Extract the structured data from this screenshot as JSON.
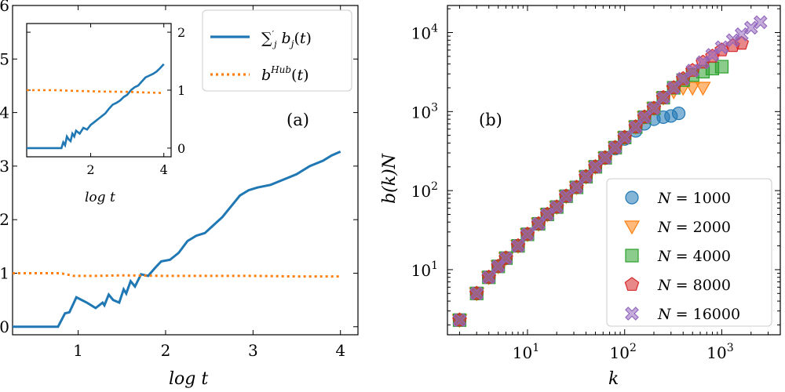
{
  "chart_data": [
    {
      "id": "a",
      "type": "line",
      "panel_label": "(a)",
      "xlabel": "log t",
      "ylabel": "",
      "xlim": [
        0.25,
        4.2
      ],
      "ylim": [
        -0.15,
        6.0
      ],
      "xticks": [
        1,
        2,
        3,
        4
      ],
      "yticks": [
        0,
        1,
        2,
        3,
        4,
        5,
        6
      ],
      "legend": {
        "placement": "top-right",
        "entries": [
          "Σ'_j b_j(t)",
          "b^Hub(t)"
        ]
      },
      "series": [
        {
          "name": "Σ'_j b_j(t)",
          "color": "#1f77b4",
          "style": "solid",
          "x": [
            0.25,
            0.77,
            0.85,
            0.9,
            0.98,
            1.04,
            1.1,
            1.2,
            1.28,
            1.3,
            1.35,
            1.4,
            1.47,
            1.52,
            1.55,
            1.6,
            1.65,
            1.72,
            1.8,
            1.88,
            1.95,
            2.05,
            2.15,
            2.25,
            2.35,
            2.45,
            2.55,
            2.65,
            2.75,
            2.85,
            2.95,
            3.05,
            3.2,
            3.35,
            3.5,
            3.65,
            3.8,
            3.9,
            4.0
          ],
          "y": [
            0,
            0,
            0.25,
            0.27,
            0.55,
            0.5,
            0.45,
            0.35,
            0.45,
            0.4,
            0.6,
            0.5,
            0.45,
            0.7,
            0.62,
            0.85,
            0.75,
            0.98,
            0.95,
            1.1,
            1.22,
            1.25,
            1.38,
            1.6,
            1.7,
            1.75,
            1.9,
            2.05,
            2.25,
            2.45,
            2.55,
            2.6,
            2.65,
            2.75,
            2.85,
            3.0,
            3.1,
            3.2,
            3.27
          ]
        },
        {
          "name": "b^Hub(t)",
          "color": "#ff7f0e",
          "style": "dotted",
          "x": [
            0.25,
            0.8,
            0.95,
            1.2,
            1.5,
            2.0,
            2.5,
            3.0,
            3.5,
            4.0
          ],
          "y": [
            1.0,
            1.0,
            0.95,
            0.95,
            0.96,
            0.95,
            0.95,
            0.95,
            0.94,
            0.94
          ]
        }
      ]
    },
    {
      "id": "a-inset",
      "type": "line",
      "xlabel": "log t",
      "xlim": [
        0.25,
        4.2
      ],
      "ylim": [
        -0.15,
        2.15
      ],
      "xticks": [
        2,
        4
      ],
      "yticks": [
        0,
        1,
        2
      ],
      "series": [
        {
          "name": "Σ'_j b_j(t)",
          "color": "#1f77b4",
          "style": "solid",
          "x": [
            0.25,
            1.2,
            1.25,
            1.3,
            1.35,
            1.4,
            1.45,
            1.5,
            1.55,
            1.6,
            1.7,
            1.8,
            1.9,
            2.0,
            2.1,
            2.2,
            2.3,
            2.4,
            2.5,
            2.6,
            2.7,
            2.8,
            2.9,
            3.0,
            3.1,
            3.2,
            3.3,
            3.4,
            3.5,
            3.6,
            3.7,
            3.8,
            3.9,
            4.0
          ],
          "y": [
            0,
            0,
            0.1,
            0.05,
            0.2,
            0.15,
            0.12,
            0.25,
            0.2,
            0.3,
            0.25,
            0.35,
            0.32,
            0.4,
            0.45,
            0.5,
            0.55,
            0.6,
            0.68,
            0.75,
            0.78,
            0.82,
            0.88,
            0.92,
            1.0,
            1.05,
            1.08,
            1.15,
            1.22,
            1.25,
            1.28,
            1.32,
            1.38,
            1.45
          ]
        },
        {
          "name": "b^Hub(t)",
          "color": "#ff7f0e",
          "style": "dotted",
          "x": [
            0.25,
            1.0,
            2.0,
            3.0,
            4.0
          ],
          "y": [
            1.0,
            1.0,
            0.98,
            0.97,
            0.95
          ]
        }
      ]
    },
    {
      "id": "b",
      "type": "scatter",
      "panel_label": "(b)",
      "xlabel": "k",
      "ylabel": "b(k)N",
      "xscale": "log",
      "yscale": "log",
      "xlim": [
        1.5,
        4000
      ],
      "ylim": [
        1.5,
        22000
      ],
      "xticks": [
        "10^1",
        "10^2",
        "10^3"
      ],
      "yticks": [
        "10^1",
        "10^2",
        "10^3",
        "10^4"
      ],
      "legend": {
        "placement": "bottom-right"
      },
      "series": [
        {
          "name": "N = 1000",
          "marker": "circle",
          "color": "#1f77b4",
          "k": [
            2,
            3,
            4,
            5,
            6,
            8,
            10,
            13,
            16,
            20,
            25,
            32,
            40,
            50,
            63,
            80,
            100,
            130,
            160,
            200,
            250,
            300,
            360
          ],
          "b": [
            2.3,
            5,
            8,
            11,
            14,
            20,
            28,
            38,
            50,
            62,
            85,
            110,
            150,
            200,
            260,
            340,
            450,
            570,
            700,
            800,
            850,
            880,
            950
          ]
        },
        {
          "name": "N = 2000",
          "marker": "triangle-down",
          "color": "#ff7f0e",
          "k": [
            2,
            3,
            4,
            5,
            6,
            8,
            10,
            13,
            16,
            20,
            25,
            32,
            40,
            50,
            63,
            80,
            100,
            130,
            160,
            200,
            250,
            320,
            400,
            500,
            640
          ],
          "b": [
            2.3,
            5,
            8,
            11,
            14,
            20,
            28,
            38,
            50,
            62,
            85,
            110,
            150,
            200,
            260,
            350,
            470,
            640,
            850,
            1100,
            1500,
            1800,
            2000,
            2000,
            2000
          ]
        },
        {
          "name": "N = 4000",
          "marker": "square",
          "color": "#2ca02c",
          "k": [
            2,
            3,
            4,
            5,
            6,
            8,
            10,
            13,
            16,
            20,
            25,
            32,
            40,
            50,
            63,
            80,
            100,
            130,
            160,
            200,
            250,
            320,
            400,
            500,
            640,
            800,
            1000
          ],
          "b": [
            2.3,
            5,
            8,
            11,
            14,
            20,
            28,
            38,
            50,
            62,
            85,
            110,
            150,
            200,
            260,
            350,
            470,
            640,
            850,
            1100,
            1500,
            2000,
            2500,
            2900,
            3200,
            3500,
            3700
          ]
        },
        {
          "name": "N = 8000",
          "marker": "pentagon",
          "color": "#d62728",
          "k": [
            2,
            3,
            4,
            5,
            6,
            8,
            10,
            13,
            16,
            20,
            25,
            32,
            40,
            50,
            63,
            80,
            100,
            130,
            160,
            200,
            250,
            320,
            400,
            500,
            640,
            800,
            1000,
            1300,
            1600
          ],
          "b": [
            2.3,
            5,
            8,
            11,
            14,
            20,
            28,
            38,
            50,
            62,
            85,
            110,
            150,
            200,
            260,
            350,
            470,
            640,
            850,
            1100,
            1500,
            2000,
            2600,
            3300,
            4200,
            5000,
            6000,
            6800,
            7300
          ]
        },
        {
          "name": "N = 16000",
          "marker": "x-thick",
          "color": "#9467bd",
          "k": [
            2,
            3,
            4,
            5,
            6,
            8,
            10,
            13,
            16,
            20,
            25,
            32,
            40,
            50,
            63,
            80,
            100,
            130,
            160,
            200,
            250,
            320,
            400,
            500,
            640,
            800,
            1000,
            1300,
            1600,
            2000,
            2500
          ],
          "b": [
            2.3,
            5,
            8,
            11,
            14,
            20,
            28,
            38,
            50,
            62,
            85,
            110,
            150,
            200,
            260,
            350,
            470,
            640,
            850,
            1100,
            1500,
            2000,
            2600,
            3300,
            4200,
            5200,
            6500,
            8000,
            9500,
            11500,
            13500
          ]
        }
      ]
    }
  ],
  "labels": {
    "a_xlabel": "log t",
    "inset_xlabel": "log t",
    "b_xlabel": "k",
    "b_ylabel": "b(k)N",
    "panel_a": "(a)",
    "panel_b": "(b)"
  }
}
